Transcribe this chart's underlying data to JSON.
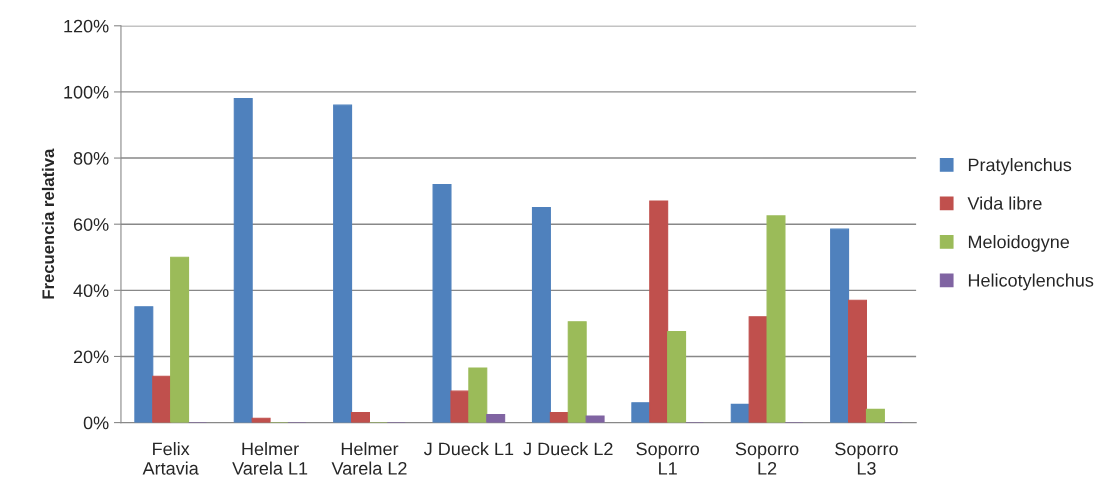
{
  "chart_data": {
    "type": "bar",
    "ylabel": "Frecuencia relativa",
    "categories": [
      "Felix\nArtavia",
      "Helmer\nVarela L1",
      "Helmer\nVarela L2",
      "J Dueck L1",
      "J Dueck L2",
      "Soporro\nL1",
      "Soporro\nL2",
      "Soporro\nL3"
    ],
    "series": [
      {
        "name": "Pratylenchus",
        "color": "#4f81bd",
        "values": [
          35,
          98,
          96,
          72,
          65,
          6,
          5.5,
          58.5
        ]
      },
      {
        "name": "Vida libre",
        "color": "#c0504d",
        "values": [
          14,
          1.3,
          3,
          9.5,
          3,
          67,
          32,
          37
        ]
      },
      {
        "name": "Meloidogyne",
        "color": "#9bbb59",
        "values": [
          50,
          0,
          0,
          16.5,
          30.5,
          27.5,
          62.5,
          4
        ]
      },
      {
        "name": "Helicotylenchus",
        "color": "#8064a2",
        "values": [
          0,
          0,
          0,
          2.4,
          2,
          0,
          0,
          0
        ]
      }
    ],
    "ylim": [
      0,
      120
    ],
    "yticks": [
      {
        "value": 0,
        "label": "0%"
      },
      {
        "value": 20,
        "label": "20%"
      },
      {
        "value": 40,
        "label": "40%"
      },
      {
        "value": 60,
        "label": "60%"
      },
      {
        "value": 80,
        "label": "80%"
      },
      {
        "value": 100,
        "label": "100%"
      },
      {
        "value": 120,
        "label": "120%"
      }
    ],
    "grid": "y",
    "legend": "right"
  }
}
